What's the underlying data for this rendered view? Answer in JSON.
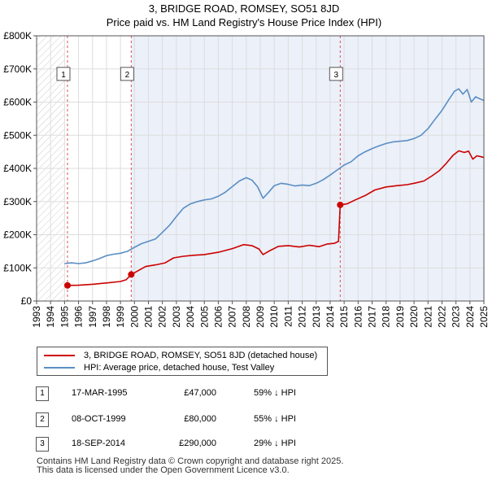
{
  "title_line1": "3, BRIDGE ROAD, ROMSEY, SO51 8JD",
  "title_line2": "Price paid vs. HM Land Registry's House Price Index (HPI)",
  "chart_data": {
    "type": "line",
    "xlim": [
      1993,
      2025
    ],
    "ylim": [
      0,
      800000
    ],
    "y_ticks": [
      0,
      100000,
      200000,
      300000,
      400000,
      500000,
      600000,
      700000,
      800000
    ],
    "y_tick_labels": [
      "£0",
      "£100K",
      "£200K",
      "£300K",
      "£400K",
      "£500K",
      "£600K",
      "£700K",
      "£800K"
    ],
    "x_ticks": [
      1993,
      1994,
      1995,
      1996,
      1997,
      1998,
      1999,
      2000,
      2001,
      2002,
      2003,
      2004,
      2005,
      2006,
      2007,
      2008,
      2009,
      2010,
      2011,
      2012,
      2013,
      2014,
      2015,
      2016,
      2017,
      2018,
      2019,
      2020,
      2021,
      2022,
      2023,
      2024,
      2025
    ],
    "x_tick_labels": [
      "1993",
      "1994",
      "1995",
      "1996",
      "1997",
      "1998",
      "1999",
      "2000",
      "2001",
      "2002",
      "2003",
      "2004",
      "2005",
      "2006",
      "2007",
      "2008",
      "2009",
      "2010",
      "2011",
      "2012",
      "2013",
      "2014",
      "2015",
      "2016",
      "2017",
      "2018",
      "2019",
      "2020",
      "2021",
      "2022",
      "2023",
      "2024",
      "2025"
    ],
    "hatch_until": 1995.0,
    "shade_ranges": [
      [
        1999.77,
        2014.72
      ],
      [
        2014.72,
        2025
      ]
    ],
    "series": [
      {
        "name": "3, BRIDGE ROAD, ROMSEY, SO51 8JD (detached house)",
        "color": "#cc0000",
        "points": [
          [
            1995.21,
            47000
          ],
          [
            1996.0,
            47500
          ],
          [
            1997.0,
            50500
          ],
          [
            1998.0,
            54500
          ],
          [
            1999.0,
            59000
          ],
          [
            1999.4,
            64000
          ],
          [
            1999.77,
            80000
          ],
          [
            2000.2,
            90000
          ],
          [
            2000.8,
            104000
          ],
          [
            2001.5,
            109000
          ],
          [
            2002.2,
            115000
          ],
          [
            2002.8,
            130000
          ],
          [
            2003.5,
            135000
          ],
          [
            2004.2,
            138000
          ],
          [
            2005.0,
            140000
          ],
          [
            2006.0,
            147000
          ],
          [
            2007.0,
            158000
          ],
          [
            2007.8,
            170000
          ],
          [
            2008.4,
            167000
          ],
          [
            2008.9,
            157000
          ],
          [
            2009.2,
            140000
          ],
          [
            2009.6,
            150000
          ],
          [
            2010.3,
            165000
          ],
          [
            2011.0,
            167000
          ],
          [
            2011.8,
            163000
          ],
          [
            2012.5,
            168000
          ],
          [
            2013.2,
            164000
          ],
          [
            2013.8,
            172000
          ],
          [
            2014.3,
            174000
          ],
          [
            2014.6,
            180000
          ],
          [
            2014.72,
            290000
          ],
          [
            2015.2,
            293000
          ],
          [
            2015.8,
            305000
          ],
          [
            2016.5,
            318000
          ],
          [
            2017.2,
            335000
          ],
          [
            2018.0,
            344000
          ],
          [
            2018.8,
            348000
          ],
          [
            2019.5,
            351000
          ],
          [
            2020.0,
            355000
          ],
          [
            2020.7,
            362000
          ],
          [
            2021.3,
            378000
          ],
          [
            2021.8,
            393000
          ],
          [
            2022.3,
            415000
          ],
          [
            2022.8,
            440000
          ],
          [
            2023.2,
            453000
          ],
          [
            2023.6,
            448000
          ],
          [
            2023.9,
            452000
          ],
          [
            2024.2,
            428000
          ],
          [
            2024.5,
            438000
          ],
          [
            2024.8,
            435000
          ],
          [
            2025.0,
            433000
          ]
        ]
      },
      {
        "name": "HPI: Average price, detached house, Test Valley",
        "color": "#5b8ec4",
        "points": [
          [
            1995.0,
            113000
          ],
          [
            1995.5,
            115000
          ],
          [
            1996.0,
            113000
          ],
          [
            1996.5,
            115000
          ],
          [
            1997.0,
            121000
          ],
          [
            1997.5,
            128000
          ],
          [
            1998.0,
            137000
          ],
          [
            1998.5,
            141000
          ],
          [
            1999.0,
            144000
          ],
          [
            1999.5,
            150000
          ],
          [
            2000.0,
            162000
          ],
          [
            2000.5,
            173000
          ],
          [
            2001.0,
            180000
          ],
          [
            2001.5,
            187000
          ],
          [
            2002.0,
            207000
          ],
          [
            2002.5,
            228000
          ],
          [
            2003.0,
            255000
          ],
          [
            2003.5,
            280000
          ],
          [
            2004.0,
            293000
          ],
          [
            2004.5,
            300000
          ],
          [
            2005.0,
            305000
          ],
          [
            2005.5,
            308000
          ],
          [
            2006.0,
            316000
          ],
          [
            2006.5,
            328000
          ],
          [
            2007.0,
            345000
          ],
          [
            2007.5,
            362000
          ],
          [
            2008.0,
            372000
          ],
          [
            2008.4,
            365000
          ],
          [
            2008.8,
            345000
          ],
          [
            2009.2,
            310000
          ],
          [
            2009.6,
            328000
          ],
          [
            2010.0,
            348000
          ],
          [
            2010.5,
            355000
          ],
          [
            2011.0,
            352000
          ],
          [
            2011.5,
            347000
          ],
          [
            2012.0,
            350000
          ],
          [
            2012.5,
            348000
          ],
          [
            2013.0,
            355000
          ],
          [
            2013.5,
            366000
          ],
          [
            2014.0,
            380000
          ],
          [
            2014.5,
            395000
          ],
          [
            2015.0,
            410000
          ],
          [
            2015.5,
            420000
          ],
          [
            2016.0,
            438000
          ],
          [
            2016.5,
            450000
          ],
          [
            2017.0,
            460000
          ],
          [
            2017.5,
            468000
          ],
          [
            2018.0,
            475000
          ],
          [
            2018.5,
            480000
          ],
          [
            2019.0,
            482000
          ],
          [
            2019.5,
            484000
          ],
          [
            2020.0,
            490000
          ],
          [
            2020.5,
            500000
          ],
          [
            2021.0,
            520000
          ],
          [
            2021.5,
            548000
          ],
          [
            2022.0,
            575000
          ],
          [
            2022.5,
            608000
          ],
          [
            2022.9,
            633000
          ],
          [
            2023.2,
            640000
          ],
          [
            2023.5,
            624000
          ],
          [
            2023.8,
            638000
          ],
          [
            2024.1,
            600000
          ],
          [
            2024.4,
            616000
          ],
          [
            2024.7,
            610000
          ],
          [
            2025.0,
            605000
          ]
        ]
      }
    ],
    "sales": [
      {
        "label": "1",
        "x": 1995.21,
        "y": 47000
      },
      {
        "label": "2",
        "x": 1999.77,
        "y": 80000
      },
      {
        "label": "3",
        "x": 2014.72,
        "y": 290000
      }
    ],
    "marker_label_y": 685000
  },
  "legend": {
    "property_label": "3, BRIDGE ROAD, ROMSEY, SO51 8JD (detached house)",
    "hpi_label": "HPI: Average price, detached house, Test Valley",
    "property_color": "#cc0000",
    "hpi_color": "#5b8ec4"
  },
  "transactions": [
    {
      "num": "1",
      "date": "17-MAR-1995",
      "price": "£47,000",
      "hpi": "59% ↓ HPI"
    },
    {
      "num": "2",
      "date": "08-OCT-1999",
      "price": "£80,000",
      "hpi": "55% ↓ HPI"
    },
    {
      "num": "3",
      "date": "18-SEP-2014",
      "price": "£290,000",
      "hpi": "29% ↓ HPI"
    }
  ],
  "footer": {
    "line1": "Contains HM Land Registry data © Crown copyright and database right 2025.",
    "line2": "This data is licensed under the Open Government Licence v3.0."
  }
}
